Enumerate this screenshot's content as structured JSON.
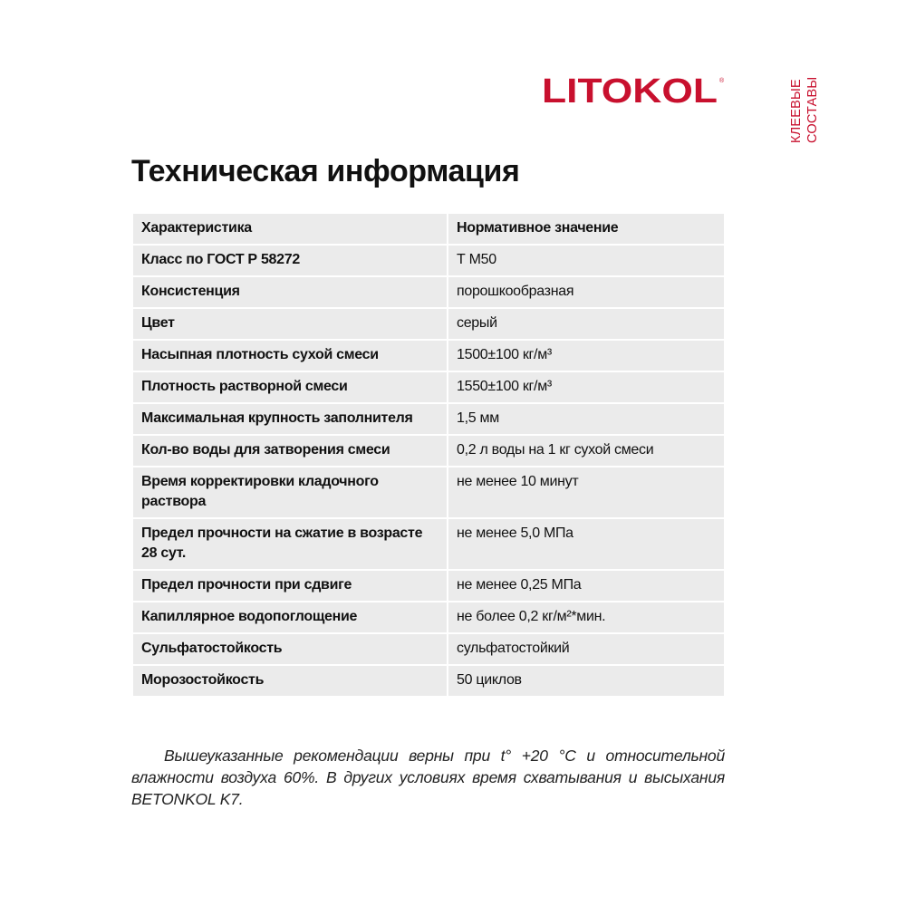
{
  "brand": {
    "logo": "LITOKOL",
    "registered": "®",
    "color": "#c8102e",
    "side_line1": "КЛЕЕВЫЕ",
    "side_line2": "СОСТАВЫ"
  },
  "title": "Техническая информация",
  "table": {
    "headers": [
      "Характеристика",
      "Нормативное значение"
    ],
    "rows": [
      [
        "Класс по ГОСТ Р 58272",
        "Т М50"
      ],
      [
        "Консистенция",
        "порошкообразная"
      ],
      [
        "Цвет",
        "серый"
      ],
      [
        "Насыпная плотность сухой смеси",
        "1500±100 кг/м³"
      ],
      [
        "Плотность растворной смеси",
        "1550±100 кг/м³"
      ],
      [
        "Максимальная крупность заполнителя",
        "1,5 мм"
      ],
      [
        "Кол-во воды для затворения смеси",
        "0,2 л воды на 1 кг сухой смеси"
      ],
      [
        "Время корректировки кладочного раствора",
        "не менее 10 минут"
      ],
      [
        "Предел прочности на сжатие в возрасте 28 сут.",
        "не менее 5,0 МПа"
      ],
      [
        "Предел прочности при сдвиге",
        "не менее 0,25 МПа"
      ],
      [
        "Капиллярное водопоглощение",
        "не более 0,2 кг/м²*мин."
      ],
      [
        "Сульфатостойкость",
        "сульфатостойкий"
      ],
      [
        "Морозостойкость",
        "50 циклов"
      ]
    ]
  },
  "note": "Вышеуказанные рекомендации верны при t° +20 °С и относительной влажности воздуха 60%. В других условиях время схватывания и высыхания BETONKOL K7."
}
